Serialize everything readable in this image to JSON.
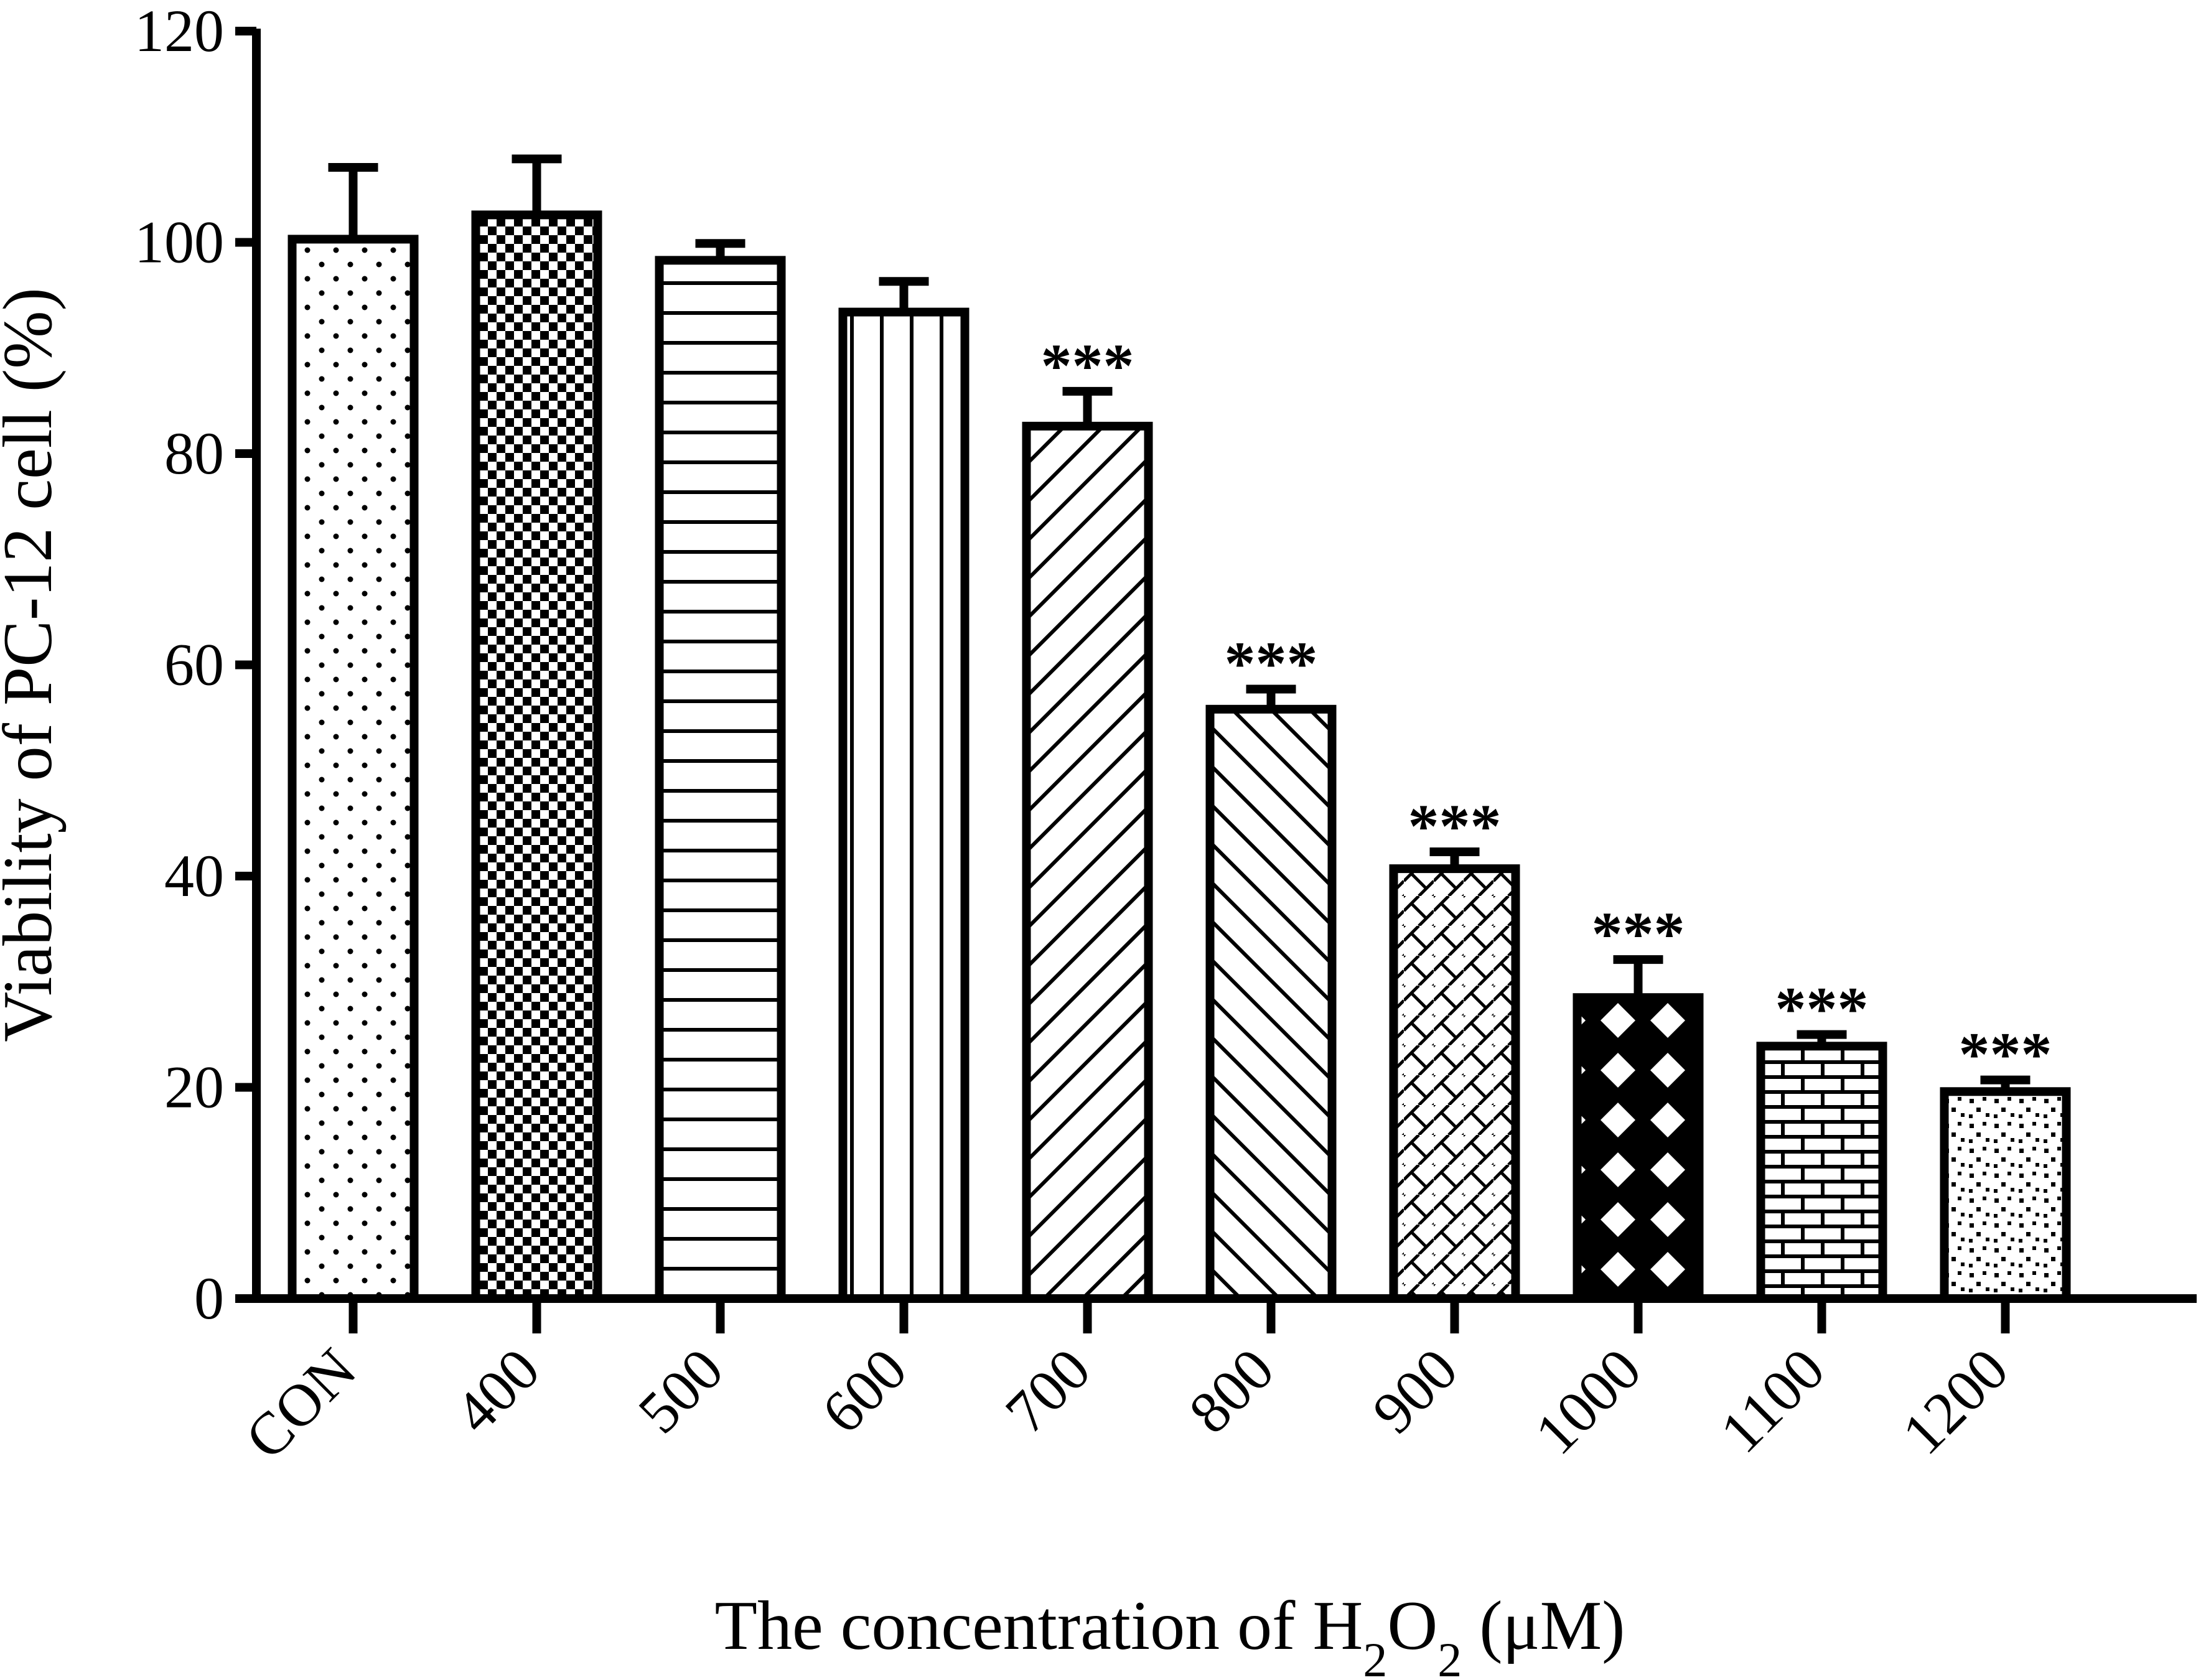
{
  "chart_data": {
    "type": "bar",
    "title": "",
    "ylabel": "Viability of PC-12 cell (%)",
    "xlabel": {
      "prefix": "The concentration of H",
      "sub1": "2",
      "mid": "O",
      "sub2": "2",
      "suffix": " (μM)"
    },
    "ylim": [
      0,
      120
    ],
    "yticks": [
      "0",
      "20",
      "40",
      "60",
      "80",
      "100",
      "120"
    ],
    "categories": [
      "CON",
      "400",
      "500",
      "600",
      "700",
      "800",
      "900",
      "1000",
      "1100",
      "1200"
    ],
    "values": [
      100.3,
      102.6,
      98.3,
      93.4,
      82.6,
      55.8,
      40.7,
      28.5,
      23.9,
      19.6
    ],
    "errors": [
      6.8,
      5.3,
      1.6,
      2.9,
      3.3,
      1.9,
      1.6,
      3.6,
      1.1,
      1.1
    ],
    "annotations": [
      "",
      "",
      "",
      "",
      "***",
      "***",
      "***",
      "***",
      "***",
      "***"
    ],
    "patterns": [
      "dots",
      "checker",
      "hlines",
      "vlines",
      "diag-up",
      "diag-down",
      "weave",
      "diamond-lattice",
      "brick",
      "speckle"
    ],
    "grid": false,
    "legend": "none",
    "colors": {
      "bar_fill": "#ffffff",
      "bar_stroke": "#000000",
      "axis": "#000000"
    }
  }
}
